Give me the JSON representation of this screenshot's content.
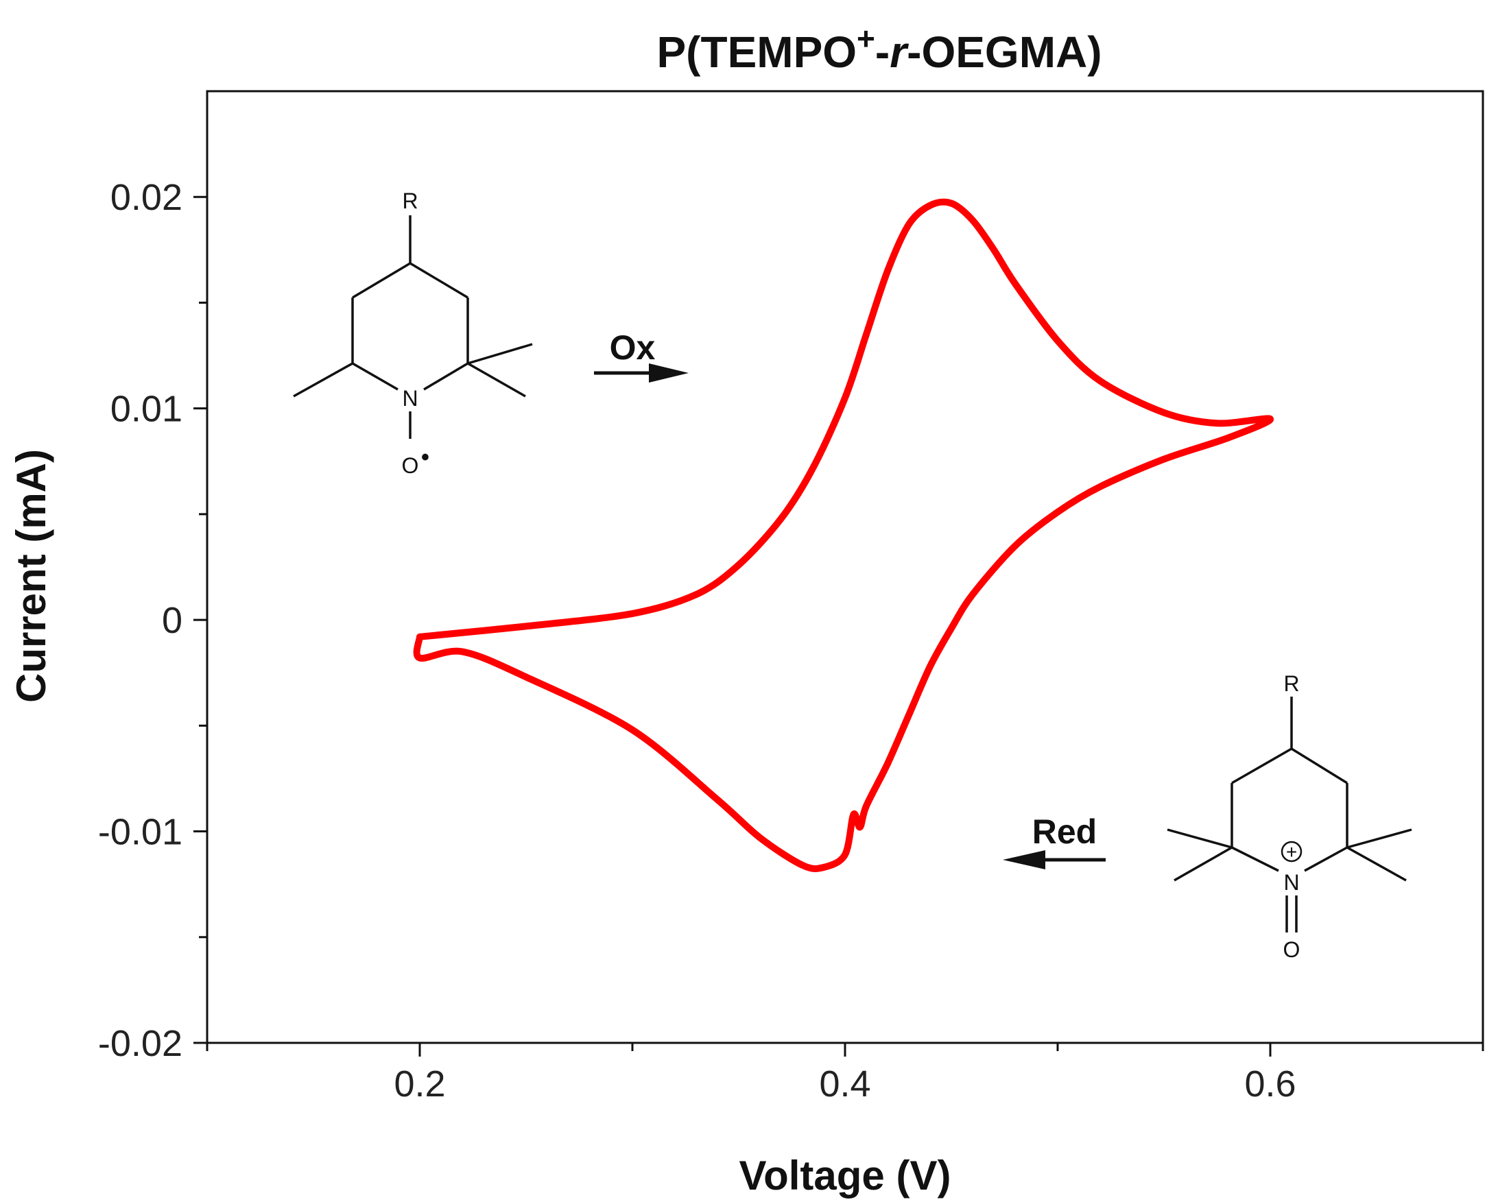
{
  "chart_data": {
    "type": "line",
    "title": {
      "prefix": "P(TEMPO",
      "superscript": "+",
      "dash1": "-",
      "italic": "r",
      "suffix": "-OEGMA)"
    },
    "xlabel": "Voltage (V)",
    "ylabel": "Current (mA)",
    "xlim": [
      0.1,
      0.7
    ],
    "ylim": [
      -0.02,
      0.025
    ],
    "x_ticks": [
      0.2,
      0.4,
      0.6
    ],
    "x_tick_labels": [
      "0.2",
      "0.4",
      "0.6"
    ],
    "x_minor_ticks": [
      0.1,
      0.3,
      0.5,
      0.7
    ],
    "y_ticks": [
      -0.02,
      -0.01,
      0,
      0.01,
      0.02
    ],
    "y_tick_labels": [
      "-0.02",
      "-0.01",
      "0",
      "0.01",
      "0.02"
    ],
    "y_minor_ticks": [
      -0.015,
      -0.005,
      0.005,
      0.015
    ],
    "grid": false,
    "series": [
      {
        "color": "#ff0000",
        "x": [
          0.2,
          0.25,
          0.3,
          0.33,
          0.35,
          0.37,
          0.385,
          0.4,
          0.41,
          0.42,
          0.43,
          0.44,
          0.45,
          0.46,
          0.47,
          0.48,
          0.5,
          0.52,
          0.55,
          0.575,
          0.6,
          0.58,
          0.55,
          0.52,
          0.5,
          0.48,
          0.46,
          0.45,
          0.44,
          0.43,
          0.42,
          0.41,
          0.407,
          0.404,
          0.4,
          0.39,
          0.38,
          0.36,
          0.34,
          0.3,
          0.25,
          0.22,
          0.2,
          0.2
        ],
        "y": [
          -0.0008,
          -0.0003,
          0.0003,
          0.0012,
          0.0026,
          0.0048,
          0.0072,
          0.0105,
          0.0135,
          0.0165,
          0.0187,
          0.0196,
          0.0197,
          0.0189,
          0.0175,
          0.0159,
          0.0132,
          0.0113,
          0.0098,
          0.0093,
          0.0095,
          0.0086,
          0.0076,
          0.0063,
          0.0051,
          0.0035,
          0.0012,
          -0.0004,
          -0.0022,
          -0.0045,
          -0.0068,
          -0.0088,
          -0.0098,
          -0.0092,
          -0.0111,
          -0.0117,
          -0.0116,
          -0.0103,
          -0.0085,
          -0.0052,
          -0.0027,
          -0.0015,
          -0.0018,
          -0.0008
        ]
      }
    ],
    "annotations": {
      "oxidation_label": "Ox",
      "reduction_label": "Red",
      "radical_structure": {
        "r_group": "R",
        "nitrogen": "N",
        "oxygen": "O",
        "radical_dot": "•"
      },
      "oxoammonium_structure": {
        "r_group": "R",
        "nitrogen": "N",
        "oxygen": "O",
        "charge": "+"
      }
    }
  }
}
